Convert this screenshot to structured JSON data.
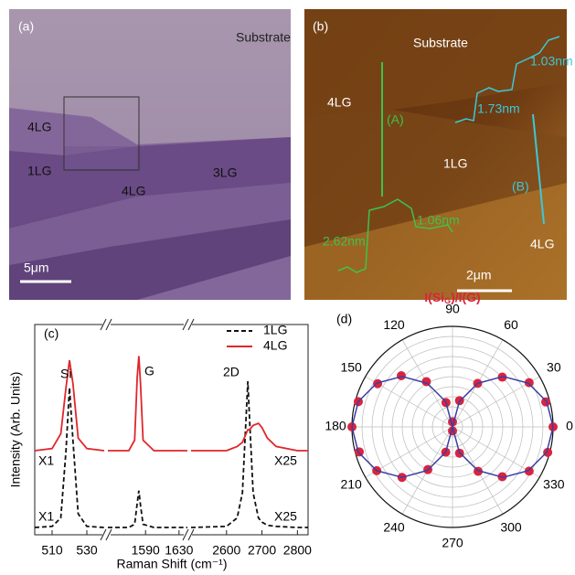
{
  "panels": [
    {
      "label": "(a)",
      "substrate": "Substrate",
      "regions": [
        "4LG",
        "1LG",
        "4LG",
        "3LG"
      ],
      "scale_bar": "5μm"
    },
    {
      "label": "(b)",
      "substrate": "Substrate",
      "regions": [
        "4LG",
        "1LG",
        "4LG"
      ],
      "profiles": [
        "(A)",
        "(B)"
      ],
      "heights": [
        "1.73nm",
        "1.03nm",
        "2.62nm",
        "1.06nm"
      ],
      "scale_bar": "2μm"
    }
  ],
  "chart_data": [
    {
      "type": "line",
      "label": "(c)",
      "x_label": "Raman Shift (cm⁻¹)",
      "y_label": "Intensity (Arb. Units)",
      "segments": [
        {
          "xlim": [
            500,
            540
          ],
          "xticks": [
            510,
            530
          ]
        },
        {
          "xlim": [
            1545,
            1640
          ],
          "xticks": [
            1590,
            1630
          ]
        },
        {
          "xlim": [
            2500,
            2830
          ],
          "xticks": [
            2600,
            2700,
            2800
          ]
        }
      ],
      "ylim": [
        0,
        100
      ],
      "x": [
        500,
        510,
        515,
        518,
        520,
        522,
        525,
        530,
        540,
        1545,
        1570,
        1577,
        1580,
        1582,
        1584,
        1587,
        1600,
        1640,
        2500,
        2600,
        2630,
        2645,
        2655,
        2660,
        2665,
        2675,
        2690,
        2700,
        2715,
        2740,
        2800,
        2830
      ],
      "series": [
        {
          "name": "1LG",
          "color": "#111111",
          "dash": true,
          "values": [
            3.5,
            4,
            8,
            40,
            70,
            45,
            10,
            4,
            3.5,
            3.5,
            3.5,
            5,
            15,
            21,
            14,
            5,
            3.5,
            3.5,
            3.5,
            4,
            8,
            20,
            55,
            73,
            55,
            20,
            8,
            6,
            4.5,
            4,
            3.5,
            3.5
          ]
        },
        {
          "name": "4LG",
          "color": "#e0262b",
          "dash": false,
          "values": [
            40,
            41,
            48,
            70,
            83,
            72,
            46,
            41,
            40,
            40,
            40,
            45,
            75,
            85,
            72,
            45,
            40,
            40,
            40,
            40,
            42,
            44,
            48,
            50,
            50,
            52,
            53,
            51,
            46,
            42,
            40,
            40
          ]
        }
      ],
      "peaks": [
        "Si",
        "G",
        "2D"
      ],
      "factors": [
        "X1",
        "X25",
        "X1",
        "X25"
      ]
    },
    {
      "type": "polar",
      "label": "(d)",
      "title_parts": [
        "I(Si",
        "G",
        ")/I(G)"
      ],
      "rlim": [
        0,
        1
      ],
      "thetaticks": [
        0,
        30,
        60,
        90,
        120,
        150,
        180,
        210,
        240,
        270,
        300,
        330
      ],
      "theta": [
        0,
        15,
        30,
        45,
        60,
        75,
        90,
        105,
        120,
        135,
        150,
        165,
        180,
        195,
        210,
        225,
        240,
        255,
        270,
        285,
        300,
        315,
        330,
        345
      ],
      "series": [
        {
          "color": "#d9243f",
          "marker": true,
          "values": [
            1.0,
            0.96,
            0.88,
            0.7,
            0.5,
            0.27,
            0.05,
            0.25,
            0.52,
            0.72,
            0.86,
            0.97,
            1.0,
            0.96,
            0.87,
            0.71,
            0.49,
            0.26,
            0.04,
            0.27,
            0.51,
            0.7,
            0.88,
            0.98
          ]
        },
        {
          "color": "#3a3fa0",
          "marker": false,
          "values": [
            1.0,
            0.97,
            0.87,
            0.71,
            0.5,
            0.26,
            0.0,
            0.26,
            0.5,
            0.71,
            0.87,
            0.97,
            1.0,
            0.97,
            0.87,
            0.71,
            0.5,
            0.26,
            0.0,
            0.26,
            0.5,
            0.71,
            0.87,
            0.97
          ]
        }
      ]
    }
  ]
}
